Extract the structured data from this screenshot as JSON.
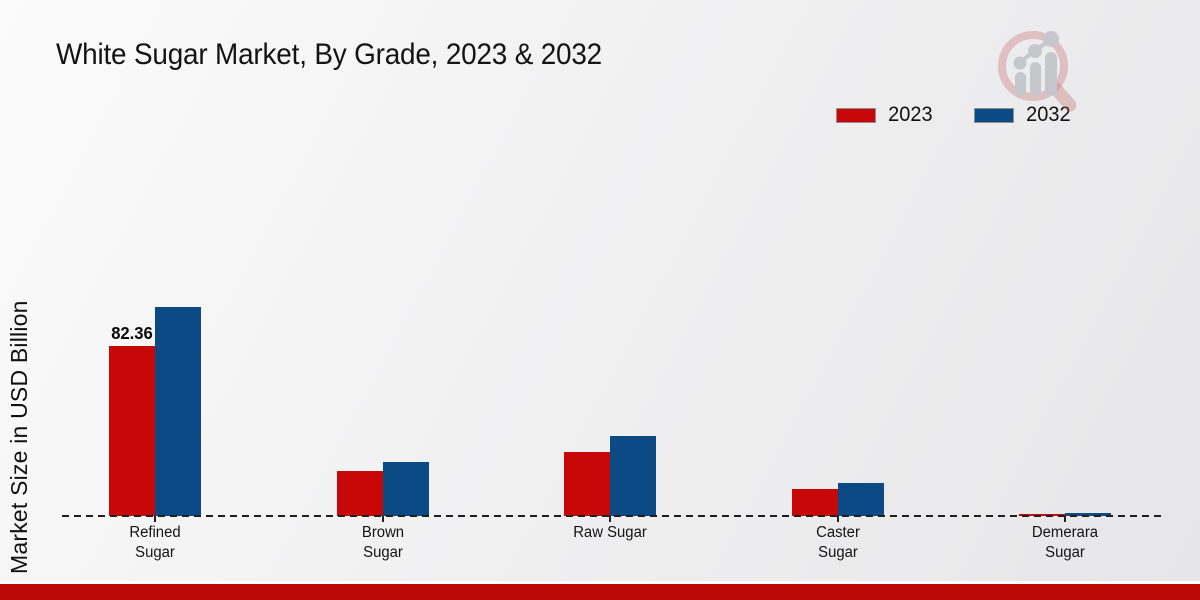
{
  "title": "White Sugar Market, By Grade, 2023 & 2032",
  "y_axis_label": "Market Size in USD Billion",
  "legend": [
    {
      "label": "2023",
      "color": "#c80808"
    },
    {
      "label": "2032",
      "color": "#0b4a84"
    }
  ],
  "watermark_icon": "magnifier-bar-chart-logo",
  "chart_data": {
    "type": "bar",
    "title": "White Sugar Market, By Grade, 2023 & 2032",
    "ylabel": "Market Size in USD Billion",
    "xlabel": "",
    "categories": [
      "Refined Sugar",
      "Brown Sugar",
      "Raw Sugar",
      "Caster Sugar",
      "Demerara Sugar"
    ],
    "category_display": [
      "Refined\nSugar",
      "Brown\nSugar",
      "Raw Sugar",
      "Caster\nSugar",
      "Demerara\nSugar"
    ],
    "series": [
      {
        "name": "2023",
        "color": "#c80808",
        "values": [
          82.36,
          21.8,
          31.0,
          13.1,
          0.8
        ]
      },
      {
        "name": "2032",
        "color": "#0b4a84",
        "values": [
          101.2,
          26.2,
          38.8,
          16.0,
          1.7
        ]
      }
    ],
    "data_label": {
      "series_index": 0,
      "category_index": 0,
      "text": "82.36"
    },
    "ylim": [
      0,
      110
    ],
    "grid": false,
    "baseline_style": "dashed",
    "legend_position": "top-right"
  },
  "footer": {
    "bar_color": "#bd0808"
  }
}
